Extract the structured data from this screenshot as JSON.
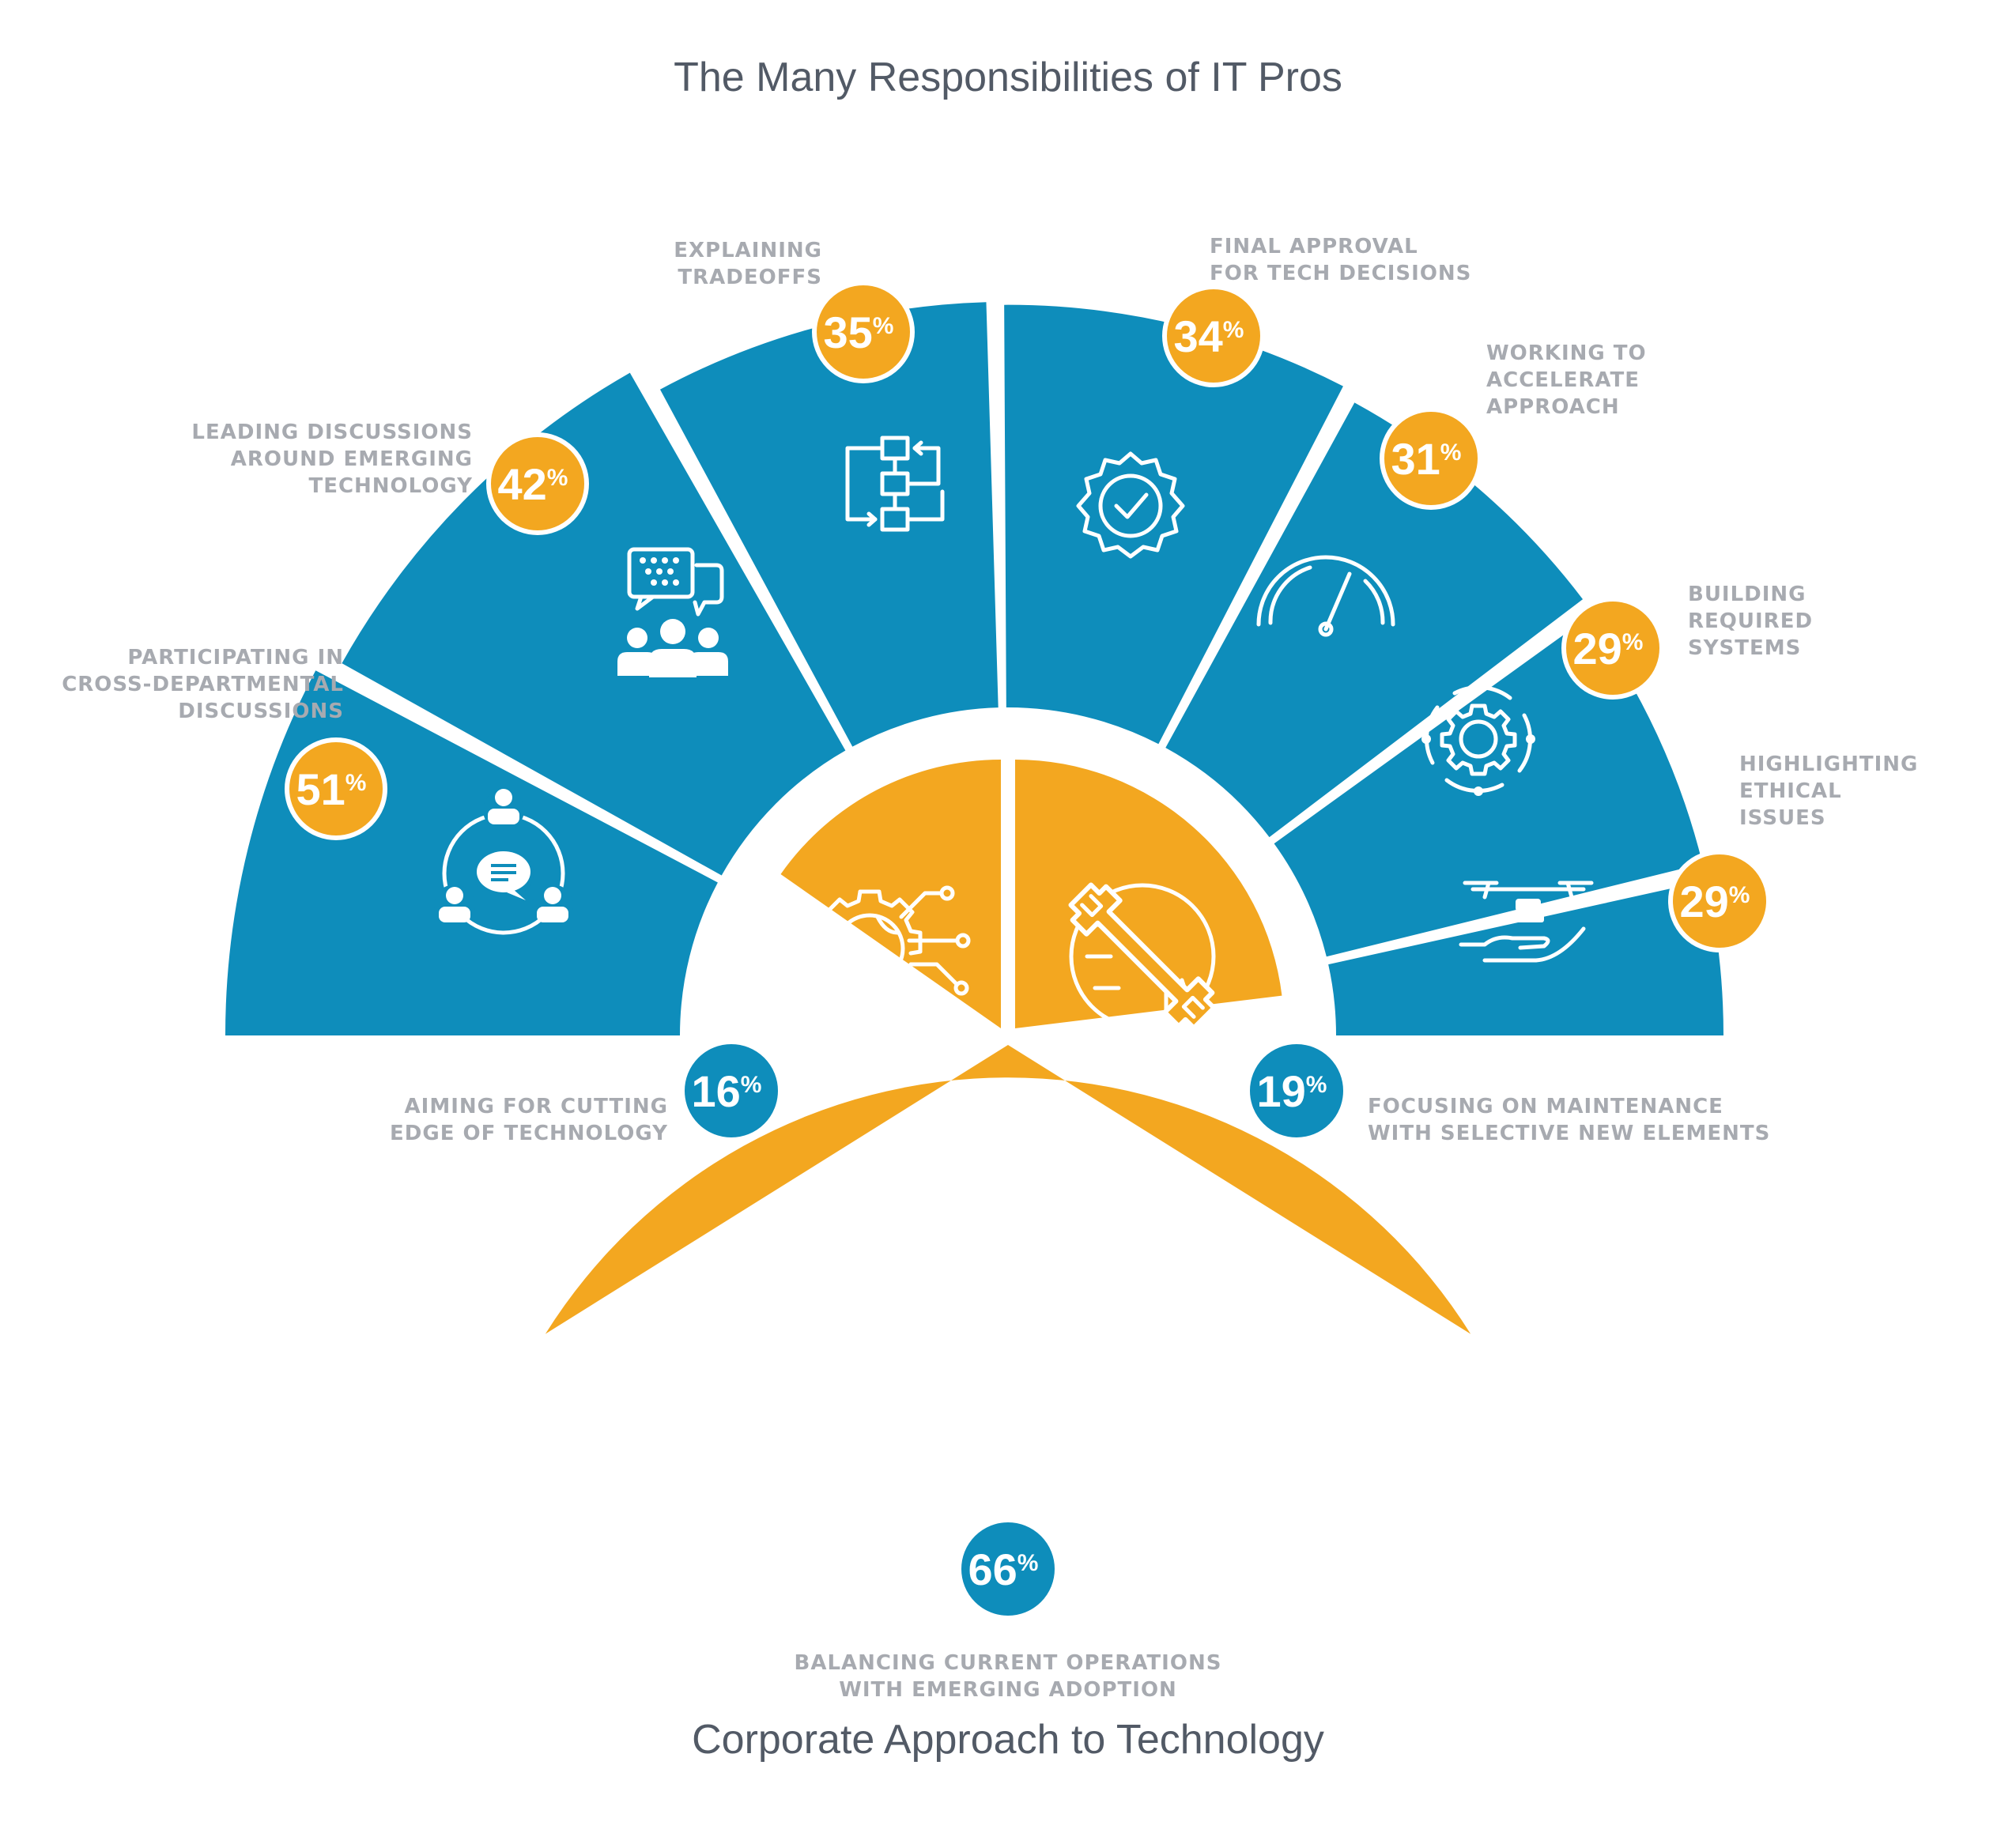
{
  "title_top": "The Many Responsibilities of IT Pros",
  "title_bottom": "Corporate Approach to Technology",
  "colors": {
    "blue": "#0e8dbb",
    "orange": "#f3a720",
    "text_dark": "#525a66",
    "caption": "#a7aab0"
  },
  "chart_data": [
    {
      "type": "bar",
      "title": "The Many Responsibilities of IT Pros",
      "categories": [
        "Participating in cross-departmental discussions",
        "Leading discussions around emerging technology",
        "Explaining tradeoffs",
        "Final approval for tech decisions",
        "Working to accelerate approach",
        "Building required systems",
        "Highlighting ethical issues"
      ],
      "values": [
        51,
        42,
        35,
        34,
        31,
        29,
        29
      ],
      "unit": "%",
      "icons": [
        "discussion-circle-icon",
        "chat-team-icon",
        "flowchart-icon",
        "verified-badge-icon",
        "speedometer-icon",
        "gear-cycle-icon",
        "hand-scale-icon"
      ]
    },
    {
      "type": "pie",
      "title": "Corporate Approach to Technology",
      "categories": [
        "Aiming for cutting edge of technology",
        "Focusing on maintenance with selective new elements",
        "Balancing current operations with emerging adoption"
      ],
      "values": [
        16,
        19,
        66
      ],
      "unit": "%",
      "icons": [
        "tech-globe-gear-icon",
        "wrench-circuit-icon",
        "balance-idea-gear-icon"
      ]
    }
  ],
  "labels": {
    "blue": [
      {
        "pct": "51",
        "lines": [
          "Participating in",
          "cross-departmental",
          "discussions"
        ]
      },
      {
        "pct": "42",
        "lines": [
          "Leading discussions",
          "around emerging",
          "technology"
        ]
      },
      {
        "pct": "35",
        "lines": [
          "Explaining",
          "tradeoffs"
        ]
      },
      {
        "pct": "34",
        "lines": [
          "Final approval",
          "for tech decisions"
        ]
      },
      {
        "pct": "31",
        "lines": [
          "Working to",
          "accelerate",
          "approach"
        ]
      },
      {
        "pct": "29",
        "lines": [
          "Building",
          "required",
          "systems"
        ]
      },
      {
        "pct": "29",
        "lines": [
          "Highlighting",
          "ethical",
          "issues"
        ]
      }
    ],
    "orange": [
      {
        "pct": "16",
        "lines": [
          "Aiming for cutting",
          "edge of technology"
        ]
      },
      {
        "pct": "19",
        "lines": [
          "Focusing on maintenance",
          "with selective new elements"
        ]
      },
      {
        "pct": "66",
        "lines": [
          "Balancing current operations",
          "with emerging adoption"
        ]
      }
    ]
  }
}
